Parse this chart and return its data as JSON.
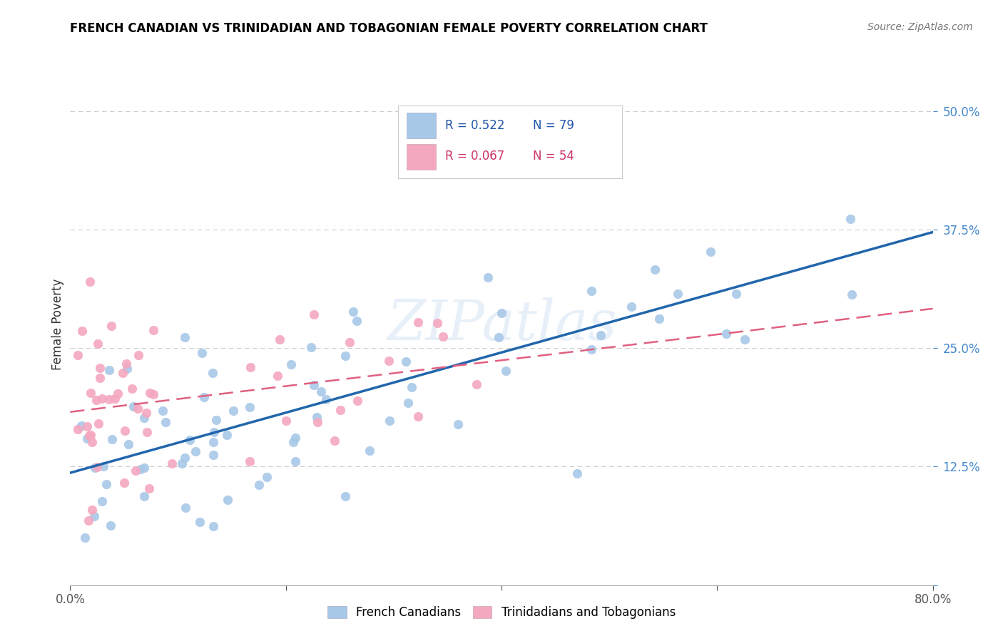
{
  "title": "FRENCH CANADIAN VS TRINIDADIAN AND TOBAGONIAN FEMALE POVERTY CORRELATION CHART",
  "source": "Source: ZipAtlas.com",
  "ylabel": "Female Poverty",
  "ytick_labels": [
    "",
    "12.5%",
    "25.0%",
    "37.5%",
    "50.0%"
  ],
  "ytick_vals": [
    0.0,
    0.125,
    0.25,
    0.375,
    0.5
  ],
  "legend_r1": "R = 0.522",
  "legend_n1": "N = 79",
  "legend_r2": "R = 0.067",
  "legend_n2": "N = 54",
  "color_blue": "#a8c8e8",
  "color_pink": "#f4a8c0",
  "line_blue": "#2166ac",
  "line_pink": "#e06080",
  "watermark": "ZIPatlas",
  "xlim": [
    0.0,
    0.8
  ],
  "ylim": [
    0.0,
    0.55
  ]
}
